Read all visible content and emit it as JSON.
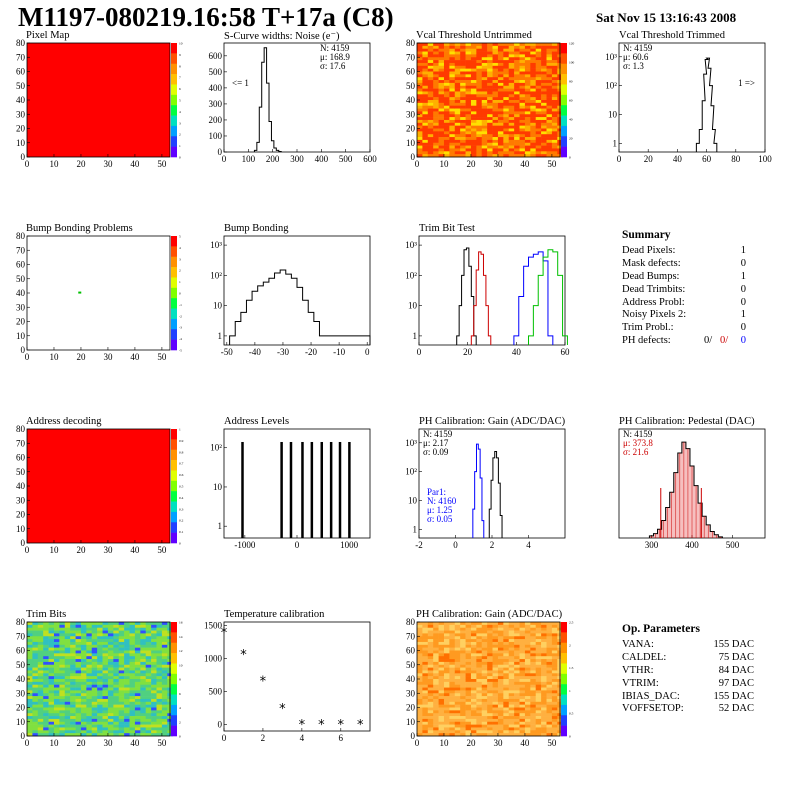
{
  "header": {
    "title": "M1197-080219.16:58 T+17a (C8)",
    "date": "Sat Nov 15 13:16:43 2008"
  },
  "colors": {
    "red": "#ff0000",
    "black": "#000000",
    "blue": "#0000ff",
    "green": "#00c000",
    "darkred": "#cc0000"
  },
  "chart_data": [
    {
      "id": "pixel-map",
      "type": "heatmap",
      "title": "Pixel Map",
      "x_ticks": [
        "0",
        "10",
        "20",
        "30",
        "40",
        "50"
      ],
      "y_ticks": [
        "0",
        "10",
        "20",
        "30",
        "40",
        "50",
        "60",
        "70",
        "80"
      ],
      "colorbar_ticks": [
        "0",
        "1",
        "2",
        "3",
        "4",
        "5",
        "6",
        "7",
        "8",
        "9",
        "10"
      ],
      "fill": "uniform-red"
    },
    {
      "id": "scurve",
      "type": "bar",
      "title": "S-Curve widths: Noise (e⁻)",
      "x_ticks": [
        "0",
        "100",
        "200",
        "300",
        "400",
        "500",
        "600"
      ],
      "xlim": [
        0,
        600
      ],
      "y_ticks": [
        "0",
        "100",
        "200",
        "300",
        "400",
        "500",
        "600"
      ],
      "ylim": [
        0,
        680
      ],
      "x": [
        130,
        140,
        150,
        160,
        170,
        180,
        190,
        200,
        210,
        220,
        230
      ],
      "values": [
        10,
        60,
        280,
        560,
        650,
        430,
        190,
        70,
        25,
        10,
        3
      ],
      "stats": [
        "N: 4159",
        "μ:  168.9",
        "σ:  17.6"
      ],
      "annotation": "<= 1"
    },
    {
      "id": "vcal-untrimmed",
      "type": "heatmap",
      "title": "Vcal Threshold Untrimmed",
      "x_ticks": [
        "0",
        "10",
        "20",
        "30",
        "40",
        "50"
      ],
      "y_ticks": [
        "0",
        "10",
        "20",
        "30",
        "40",
        "50",
        "60",
        "70",
        "80"
      ],
      "colorbar_ticks": [
        "0",
        "20",
        "40",
        "60",
        "80",
        "100",
        "120"
      ],
      "fill": "noisy-orange"
    },
    {
      "id": "vcal-trimmed",
      "type": "bar",
      "title": "Vcal Threshold Trimmed",
      "log_y": true,
      "x_ticks": [
        "0",
        "20",
        "40",
        "60",
        "80",
        "100"
      ],
      "xlim": [
        0,
        100
      ],
      "y_ticks": [
        "1",
        "10",
        "10²",
        "10³"
      ],
      "ylim": [
        0.5,
        3000
      ],
      "x": [
        54,
        56,
        58,
        59,
        60,
        61,
        62,
        63,
        64,
        65,
        66
      ],
      "values": [
        1,
        3,
        30,
        250,
        800,
        900,
        400,
        100,
        20,
        3,
        1
      ],
      "stats": [
        "N: 4159",
        "μ:  60.6",
        "σ:   1.3"
      ],
      "annotation": "1 =>"
    },
    {
      "id": "bump-problems",
      "type": "heatmap",
      "title": "Bump Bonding Problems",
      "x_ticks": [
        "0",
        "10",
        "20",
        "30",
        "40",
        "50"
      ],
      "y_ticks": [
        "0",
        "10",
        "20",
        "30",
        "40",
        "50",
        "60",
        "70",
        "80"
      ],
      "colorbar_ticks": [
        "-5",
        "-4",
        "-3",
        "-2",
        "-1",
        "0",
        "1",
        "2",
        "3",
        "4",
        "5"
      ],
      "fill": "empty",
      "points": [
        [
          19,
          41
        ]
      ]
    },
    {
      "id": "bump-bonding",
      "type": "bar",
      "title": "Bump Bonding",
      "log_y": true,
      "x_ticks": [
        "-50",
        "-40",
        "-30",
        "-20",
        "-10",
        "0"
      ],
      "xlim": [
        -51,
        1
      ],
      "y_ticks": [
        "1",
        "10",
        "10²",
        "10³"
      ],
      "ylim": [
        0.5,
        2000
      ],
      "x": [
        -48,
        -46,
        -44,
        -42,
        -40,
        -38,
        -36,
        -34,
        -32,
        -30,
        -28,
        -26,
        -24,
        -22,
        -20,
        -18,
        -16,
        0
      ],
      "values": [
        1,
        3,
        6,
        15,
        30,
        45,
        60,
        80,
        120,
        150,
        110,
        80,
        40,
        15,
        6,
        3,
        1,
        1
      ]
    },
    {
      "id": "trim-bit",
      "type": "line",
      "title": "Trim Bit Test",
      "log_y": true,
      "x_ticks": [
        "0",
        "20",
        "40",
        "60"
      ],
      "xlim": [
        0,
        60
      ],
      "y_ticks": [
        "1",
        "10",
        "10²",
        "10³"
      ],
      "ylim": [
        0.5,
        2000
      ],
      "series": [
        {
          "color": "#000000",
          "x": [
            16,
            17,
            18,
            19,
            20,
            21,
            22,
            23
          ],
          "values": [
            1,
            10,
            100,
            700,
            800,
            200,
            20,
            1
          ]
        },
        {
          "color": "#cc0000",
          "x": [
            22,
            23,
            24,
            25,
            26,
            27,
            28,
            29
          ],
          "values": [
            1,
            10,
            150,
            600,
            500,
            100,
            10,
            1
          ]
        },
        {
          "color": "#0000ff",
          "x": [
            40,
            42,
            44,
            46,
            48,
            50,
            52,
            54
          ],
          "values": [
            1,
            20,
            200,
            400,
            500,
            600,
            300,
            1
          ]
        },
        {
          "color": "#00c000",
          "x": [
            46,
            48,
            50,
            52,
            54,
            56,
            58,
            60
          ],
          "values": [
            1,
            10,
            100,
            400,
            700,
            600,
            100,
            1
          ]
        }
      ]
    },
    {
      "id": "address-decoding",
      "type": "heatmap",
      "title": "Address decoding",
      "x_ticks": [
        "0",
        "10",
        "20",
        "30",
        "40",
        "50"
      ],
      "y_ticks": [
        "0",
        "10",
        "20",
        "30",
        "40",
        "50",
        "60",
        "70",
        "80"
      ],
      "colorbar_ticks": [
        "0",
        "0.1",
        "0.2",
        "0.3",
        "0.4",
        "0.5",
        "0.6",
        "0.7",
        "0.8",
        "0.9",
        "1"
      ],
      "fill": "uniform-red"
    },
    {
      "id": "address-levels",
      "type": "bar",
      "title": "Address Levels",
      "log_y": true,
      "x_ticks": [
        "-1000",
        "0",
        "1000"
      ],
      "xlim": [
        -1400,
        1400
      ],
      "y_ticks": [
        "1",
        "10",
        "10²"
      ],
      "ylim": [
        0.5,
        300
      ],
      "x": [
        -1050,
        -300,
        -120,
        100,
        280,
        470,
        650,
        820,
        1000
      ],
      "values": [
        140,
        140,
        140,
        140,
        140,
        140,
        140,
        140,
        140
      ]
    },
    {
      "id": "ph-gain",
      "type": "bar",
      "title": "PH Calibration: Gain (ADC/DAC)",
      "log_y": true,
      "x_ticks": [
        "-2",
        "0",
        "2",
        "4"
      ],
      "xlim": [
        -2,
        6
      ],
      "y_ticks": [
        "1",
        "10",
        "10²",
        "10³"
      ],
      "ylim": [
        0.5,
        3000
      ],
      "series": [
        {
          "color": "#000000",
          "x": [
            1.9,
            2.0,
            2.1,
            2.2,
            2.3,
            2.4,
            2.5
          ],
          "values": [
            5,
            50,
            300,
            500,
            300,
            40,
            3
          ]
        },
        {
          "color": "#0000ff",
          "x": [
            1.0,
            1.1,
            1.2,
            1.3,
            1.4,
            1.5
          ],
          "values": [
            5,
            100,
            900,
            600,
            60,
            2
          ]
        }
      ],
      "stats": [
        "N: 4159",
        "μ:  2.17",
        "σ:  0.09"
      ],
      "stats2": [
        "Par1:",
        "N: 4160",
        "μ:  1.25",
        "σ:  0.05"
      ]
    },
    {
      "id": "ph-pedestal",
      "type": "bar",
      "title": "PH Calibration: Pedestal (DAC)",
      "x_ticks": [
        "300",
        "400",
        "500"
      ],
      "xlim": [
        220,
        580
      ],
      "ylim": [
        0,
        100
      ],
      "x": [
        300,
        310,
        320,
        330,
        340,
        350,
        360,
        370,
        380,
        390,
        400,
        410,
        420,
        430,
        440,
        450,
        460,
        470
      ],
      "values": [
        2,
        4,
        8,
        16,
        28,
        42,
        60,
        78,
        88,
        82,
        66,
        48,
        32,
        20,
        12,
        6,
        3,
        1
      ],
      "stats": [
        "N: 4159",
        "μ:  373.8",
        "σ:  21.6"
      ]
    },
    {
      "id": "trim-bits",
      "type": "heatmap",
      "title": "Trim Bits",
      "x_ticks": [
        "0",
        "10",
        "20",
        "30",
        "40",
        "50"
      ],
      "y_ticks": [
        "0",
        "10",
        "20",
        "30",
        "40",
        "50",
        "60",
        "70",
        "80"
      ],
      "colorbar_ticks": [
        "0",
        "2",
        "4",
        "6",
        "8",
        "10",
        "12",
        "14",
        "16"
      ],
      "fill": "noisy-green"
    },
    {
      "id": "temperature",
      "type": "scatter",
      "title": "Temperature calibration",
      "x_ticks": [
        "0",
        "2",
        "4",
        "6"
      ],
      "xlim": [
        0,
        7.5
      ],
      "y_ticks": [
        "0",
        "500",
        "1000",
        "1500"
      ],
      "ylim": [
        -100,
        1550
      ],
      "x": [
        0,
        1,
        2,
        3,
        4,
        5,
        6,
        7
      ],
      "values": [
        1380,
        1050,
        650,
        230,
        -10,
        -10,
        -10,
        -10
      ]
    },
    {
      "id": "ph-gain-map",
      "type": "heatmap",
      "title": "PH Calibration: Gain (ADC/DAC)",
      "x_ticks": [
        "0",
        "10",
        "20",
        "30",
        "40",
        "50"
      ],
      "y_ticks": [
        "0",
        "10",
        "20",
        "30",
        "40",
        "50",
        "60",
        "70",
        "80"
      ],
      "colorbar_ticks": [
        "0",
        "0.5",
        "1",
        "1.5",
        "2",
        "2.5"
      ],
      "fill": "noisy-orange-light"
    }
  ],
  "summary": {
    "heading": "Summary",
    "rows": [
      {
        "label": "Dead Pixels:",
        "value": "1"
      },
      {
        "label": "Mask defects:",
        "value": "0"
      },
      {
        "label": "Dead Bumps:",
        "value": "1"
      },
      {
        "label": "Dead Trimbits:",
        "value": "0"
      },
      {
        "label": "Address Probl:",
        "value": "0"
      },
      {
        "label": "Noisy Pixels 2:",
        "value": "1"
      },
      {
        "label": "Trim Probl.:",
        "value": "0"
      }
    ],
    "ph": {
      "label": "PH defects:",
      "a": "0/",
      "b": "0/",
      "c": "0"
    }
  },
  "opparams": {
    "heading": "Op. Parameters",
    "rows": [
      {
        "label": "VANA:",
        "value": "155 DAC"
      },
      {
        "label": "CALDEL:",
        "value": "75 DAC"
      },
      {
        "label": "VTHR:",
        "value": "84 DAC"
      },
      {
        "label": "VTRIM:",
        "value": "97 DAC"
      },
      {
        "label": "IBIAS_DAC:",
        "value": "155 DAC"
      },
      {
        "label": "VOFFSETOP:",
        "value": "52 DAC"
      }
    ]
  }
}
